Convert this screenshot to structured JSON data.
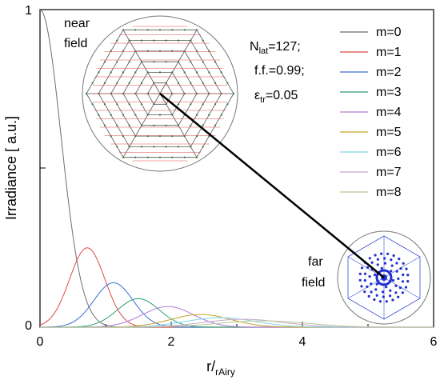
{
  "chart_data": {
    "type": "line",
    "xlabel": "r/",
    "xlabel_sub": "rAiry",
    "ylabel": "Irradiance [ a.u.]",
    "xlim": [
      0,
      6
    ],
    "ylim": [
      0,
      1
    ],
    "x_ticks": [
      "0",
      "2",
      "4",
      "6"
    ],
    "y_ticks": [
      "0",
      "1"
    ],
    "legend_position": "top-right",
    "series": [
      {
        "name": "m=0",
        "color": "#6e6e6e",
        "peak_x": 0.0,
        "peak_y": 1.0,
        "width": 0.45
      },
      {
        "name": "m=1",
        "color": "#e04a4a",
        "peak_x": 0.72,
        "peak_y": 0.25,
        "width": 0.38
      },
      {
        "name": "m=2",
        "color": "#3a6fd8",
        "peak_x": 1.12,
        "peak_y": 0.14,
        "width": 0.42
      },
      {
        "name": "m=3",
        "color": "#2e9e6e",
        "peak_x": 1.5,
        "peak_y": 0.09,
        "width": 0.45
      },
      {
        "name": "m=4",
        "color": "#b07ad8",
        "peak_x": 1.95,
        "peak_y": 0.065,
        "width": 0.55
      },
      {
        "name": "m=5",
        "color": "#c9a227",
        "peak_x": 2.45,
        "peak_y": 0.04,
        "width": 0.65
      },
      {
        "name": "m=6",
        "color": "#7fd6e8",
        "peak_x": 2.75,
        "peak_y": 0.03,
        "width": 0.75
      },
      {
        "name": "m=7",
        "color": "#c8a8c8",
        "peak_x": 3.1,
        "peak_y": 0.025,
        "width": 0.85
      },
      {
        "name": "m=8",
        "color": "#b9c79a",
        "peak_x": 3.4,
        "peak_y": 0.02,
        "width": 0.95
      }
    ],
    "annotations": {
      "near_field": [
        "near",
        "field"
      ],
      "far_field": [
        "far",
        "field"
      ],
      "params": {
        "n_lat_prefix": "N",
        "n_lat_sub": "lat",
        "n_lat_value": "=127;",
        "ff": "f.f.=0.99;",
        "eps_prefix": "ε",
        "eps_sub": "tr",
        "eps_value": "=0.05"
      }
    }
  }
}
